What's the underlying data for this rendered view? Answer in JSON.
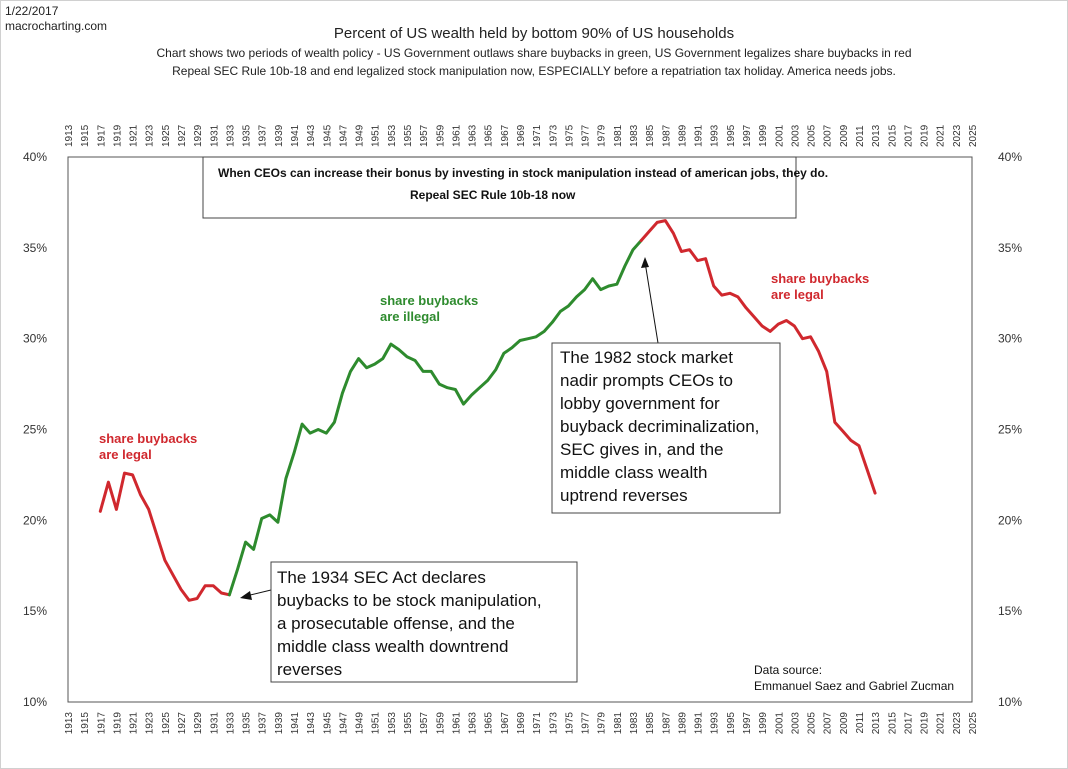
{
  "header": {
    "date": "1/22/2017",
    "site": "macrocharting.com"
  },
  "chart_data": {
    "type": "line",
    "title": "Percent of US wealth held by bottom 90% of US households",
    "subtitle_lines": [
      "Chart shows two periods of wealth policy - US Government outlaws share buybacks in green,  US Government legalizes share buybacks in red",
      "Repeal SEC Rule 10b-18 and end legalized stock manipulation now, ESPECIALLY before a repatriation tax holiday. America needs jobs."
    ],
    "ylim": [
      10,
      40
    ],
    "y_tick_labels": [
      "40%",
      "35%",
      "30%",
      "25%",
      "20%",
      "15%",
      "10%"
    ],
    "y_tick_values": [
      40,
      35,
      30,
      25,
      20,
      15,
      10
    ],
    "xlim": [
      1913,
      2025
    ],
    "x_tick_labels": [
      "1913",
      "1915",
      "1917",
      "1919",
      "1921",
      "1923",
      "1925",
      "1927",
      "1929",
      "1931",
      "1933",
      "1935",
      "1937",
      "1939",
      "1941",
      "1943",
      "1945",
      "1947",
      "1949",
      "1951",
      "1953",
      "1955",
      "1957",
      "1959",
      "1961",
      "1963",
      "1965",
      "1967",
      "1969",
      "1971",
      "1973",
      "1975",
      "1977",
      "1979",
      "1981",
      "1983",
      "1985",
      "1987",
      "1989",
      "1991",
      "1993",
      "1995",
      "1997",
      "1999",
      "2001",
      "2003",
      "2005",
      "2007",
      "2009",
      "2011",
      "2013",
      "2015",
      "2017",
      "2019",
      "2021",
      "2023",
      "2025"
    ],
    "grid": false,
    "colors": {
      "legal": "#d0282e",
      "illegal": "#2e8b2e"
    },
    "series": [
      {
        "color_key": "legal",
        "x": [
          1917,
          1918,
          1919,
          1920,
          1921,
          1922,
          1923,
          1924,
          1925,
          1926,
          1927,
          1928,
          1929,
          1930,
          1931,
          1932,
          1933
        ],
        "y": [
          20.5,
          22.1,
          20.6,
          22.6,
          22.5,
          21.4,
          20.6,
          19.2,
          17.8,
          17.0,
          16.2,
          15.6,
          15.7,
          16.4,
          16.4,
          16.0,
          15.9
        ]
      },
      {
        "color_key": "illegal",
        "x": [
          1933,
          1934,
          1935,
          1936,
          1937,
          1938,
          1939,
          1940,
          1941,
          1942,
          1943,
          1944,
          1945,
          1946,
          1947,
          1948,
          1949,
          1950,
          1951,
          1952,
          1953,
          1954,
          1955,
          1956,
          1957,
          1958,
          1959,
          1960,
          1961,
          1962,
          1963,
          1964,
          1965,
          1966,
          1967,
          1968,
          1969,
          1970,
          1971,
          1972,
          1973,
          1974,
          1975,
          1976,
          1977,
          1978,
          1979,
          1980,
          1981,
          1982,
          1983,
          1984
        ],
        "y": [
          15.9,
          17.3,
          18.8,
          18.4,
          20.1,
          20.3,
          19.9,
          22.3,
          23.7,
          25.3,
          24.8,
          25.0,
          24.8,
          25.4,
          27.0,
          28.2,
          28.9,
          28.4,
          28.6,
          28.9,
          29.7,
          29.4,
          29.0,
          28.8,
          28.2,
          28.2,
          27.5,
          27.3,
          27.2,
          26.4,
          26.9,
          27.3,
          27.7,
          28.3,
          29.2,
          29.5,
          29.9,
          30.0,
          30.1,
          30.4,
          30.9,
          31.5,
          31.8,
          32.3,
          32.7,
          33.3,
          32.7,
          32.9,
          33.0,
          34.0,
          34.9,
          35.4
        ]
      },
      {
        "color_key": "legal",
        "x": [
          1984,
          1985,
          1986,
          1987,
          1988,
          1989,
          1990,
          1991,
          1992,
          1993,
          1994,
          1995,
          1996,
          1997,
          1998,
          1999,
          2000,
          2001,
          2002,
          2003,
          2004,
          2005,
          2006,
          2007,
          2008,
          2009,
          2010,
          2011,
          2012,
          2013
        ],
        "y": [
          35.4,
          35.9,
          36.4,
          36.5,
          35.8,
          34.8,
          34.9,
          34.3,
          34.4,
          32.9,
          32.4,
          32.5,
          32.3,
          31.7,
          31.2,
          30.7,
          30.4,
          30.8,
          31.0,
          30.7,
          30.0,
          30.1,
          29.3,
          28.2,
          25.4,
          24.9,
          24.4,
          24.1,
          22.8,
          21.5
        ]
      }
    ],
    "annotations": {
      "top_box_line1": "When CEOs can increase their bonus by investing in stock manipulation instead of american jobs, they do.",
      "top_box_line2": "Repeal SEC Rule 10b-18 now",
      "legal_left_line1": "share buybacks",
      "legal_left_line2": "are legal",
      "illegal_line1": "share buybacks",
      "illegal_line2": "are illegal",
      "legal_right_line1": "share buybacks",
      "legal_right_line2": "are legal",
      "box_1982": [
        "The 1982 stock market",
        "nadir prompts CEOs to",
        "lobby government for",
        "buyback decriminalization,",
        "SEC gives in, and the",
        "middle class wealth",
        "uptrend reverses"
      ],
      "box_1934": [
        "The 1934 SEC Act declares",
        "buybacks to be stock manipulation,",
        "a prosecutable offense, and the",
        "middle class wealth downtrend",
        "reverses"
      ],
      "source_line1": "Data source:",
      "source_line2": "Emmanuel Saez and Gabriel Zucman"
    }
  }
}
